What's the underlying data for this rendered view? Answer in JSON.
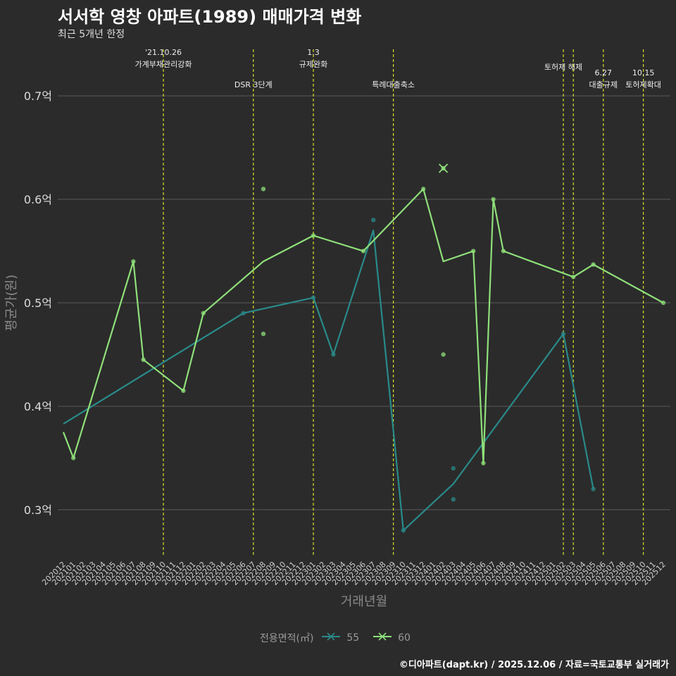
{
  "title": "서서학 영창 아파트(1989) 매매가격 변화",
  "subtitle": "최근 5개년 한정",
  "caption": "©디아파트(dapt.kr) / 2025.12.06 / 자료=국토교통부 실거래가",
  "colors": {
    "background": "#2b2b2b",
    "series55": "#2a8a8a",
    "series60": "#8fe07a",
    "event_line": "#d6e02a",
    "grid": "#5a5a5a"
  },
  "legend": {
    "title": "전용면적(㎡)",
    "items": [
      "55",
      "60"
    ]
  },
  "chart_data": {
    "type": "line",
    "title": "서서학 영창 아파트(1989) 매매가격 변화",
    "xlabel": "거래년월",
    "ylabel": "평균가(원)",
    "ylim": [
      0.255,
      0.745
    ],
    "y_ticks": [
      "0.3억",
      "0.4억",
      "0.5억",
      "0.6억",
      "0.7억"
    ],
    "y_tick_values": [
      0.3,
      0.4,
      0.5,
      0.6,
      0.7
    ],
    "x_labels": [
      "202012",
      "202101",
      "202102",
      "202103",
      "202104",
      "202105",
      "202106",
      "202107",
      "202108",
      "202109",
      "202110",
      "202111",
      "202112",
      "202201",
      "202202",
      "202203",
      "202204",
      "202205",
      "202206",
      "202207",
      "202208",
      "202209",
      "202210",
      "202211",
      "202212",
      "202301",
      "202302",
      "202303",
      "202304",
      "202305",
      "202306",
      "202307",
      "202308",
      "202309",
      "202310",
      "202311",
      "202312",
      "202401",
      "202402",
      "202403",
      "202404",
      "202405",
      "202406",
      "202407",
      "202408",
      "202409",
      "202410",
      "202411",
      "202412",
      "202501",
      "202502",
      "202503",
      "202504",
      "202505",
      "202506",
      "202507",
      "202508",
      "202509",
      "202510",
      "202511",
      "202512"
    ],
    "events": [
      {
        "x": 10,
        "label": "'21.10.26\n가계부채관리강화",
        "row": 0
      },
      {
        "x": 19,
        "label": "DSR 3단계",
        "row": 1
      },
      {
        "x": 25,
        "label": "1.3\n규제완화",
        "row": 0
      },
      {
        "x": 33,
        "label": "특례대출축소",
        "row": 1
      },
      {
        "x": 50,
        "label": "토허제 해제",
        "row": 0
      },
      {
        "x": 51,
        "label": "",
        "row": 0
      },
      {
        "x": 54,
        "label": "6.27\n대출규제",
        "row": 1
      },
      {
        "x": 58,
        "label": "10.15\n토허제확대",
        "row": 1
      }
    ],
    "series": [
      {
        "name": "55",
        "line": [
          [
            0,
            0.383
          ],
          [
            18,
            0.49
          ],
          [
            25,
            0.505
          ],
          [
            27,
            0.45
          ],
          [
            31,
            0.57
          ],
          [
            34,
            0.28
          ],
          [
            39,
            0.325
          ],
          [
            50,
            0.47
          ],
          [
            53,
            0.32
          ]
        ],
        "points": [
          [
            18,
            0.49
          ],
          [
            25,
            0.505
          ],
          [
            27,
            0.45
          ],
          [
            31,
            0.58
          ],
          [
            34,
            0.28
          ],
          [
            39,
            0.34
          ],
          [
            39,
            0.31
          ],
          [
            50,
            0.47
          ],
          [
            53,
            0.32
          ]
        ]
      },
      {
        "name": "60",
        "line": [
          [
            0,
            0.375
          ],
          [
            1,
            0.35
          ],
          [
            7,
            0.54
          ],
          [
            8,
            0.445
          ],
          [
            12,
            0.415
          ],
          [
            14,
            0.49
          ],
          [
            20,
            0.54
          ],
          [
            25,
            0.565
          ],
          [
            30,
            0.55
          ],
          [
            36,
            0.61
          ],
          [
            38,
            0.54
          ],
          [
            41,
            0.55
          ],
          [
            42,
            0.345
          ],
          [
            43,
            0.6
          ],
          [
            44,
            0.55
          ],
          [
            51,
            0.525
          ],
          [
            53,
            0.537
          ],
          [
            60,
            0.5
          ]
        ],
        "points": [
          [
            1,
            0.35
          ],
          [
            7,
            0.54
          ],
          [
            8,
            0.445
          ],
          [
            12,
            0.415
          ],
          [
            14,
            0.49
          ],
          [
            20,
            0.61
          ],
          [
            20,
            0.47
          ],
          [
            25,
            0.565
          ],
          [
            30,
            0.55
          ],
          [
            36,
            0.61
          ],
          [
            38,
            0.45
          ],
          [
            41,
            0.55
          ],
          [
            42,
            0.345
          ],
          [
            43,
            0.6
          ],
          [
            44,
            0.55
          ],
          [
            51,
            0.525
          ],
          [
            53,
            0.537
          ],
          [
            60,
            0.5
          ]
        ],
        "cross": [
          [
            38,
            0.63
          ]
        ]
      }
    ]
  }
}
